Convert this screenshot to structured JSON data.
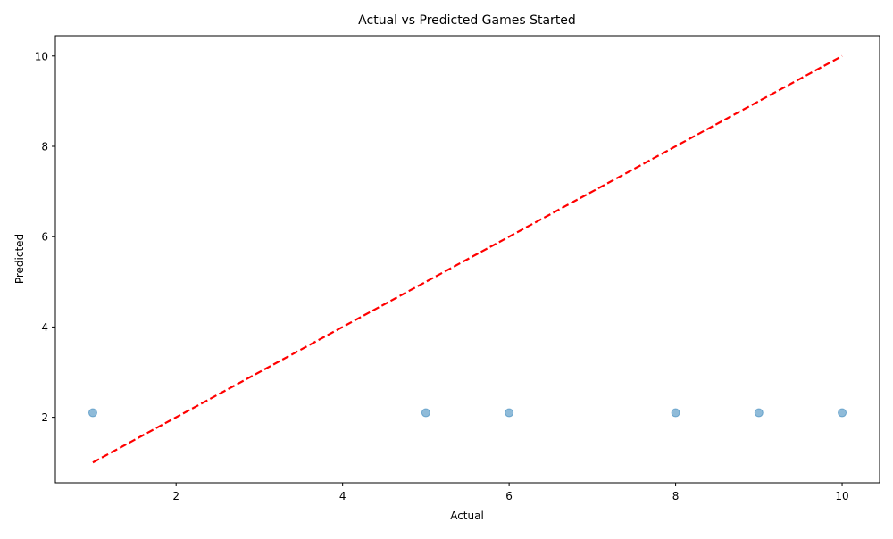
{
  "chart_data": {
    "type": "scatter",
    "title": "Actual vs Predicted Games Started",
    "xlabel": "Actual",
    "ylabel": "Predicted",
    "xlim": [
      0.55,
      10.45
    ],
    "ylim": [
      0.55,
      10.45
    ],
    "xticks": [
      2,
      4,
      6,
      8,
      10
    ],
    "yticks": [
      2,
      4,
      6,
      8,
      10
    ],
    "grid": false,
    "points": [
      {
        "x": 1,
        "y": 2.1
      },
      {
        "x": 5,
        "y": 2.1
      },
      {
        "x": 6,
        "y": 2.1
      },
      {
        "x": 8,
        "y": 2.1
      },
      {
        "x": 9,
        "y": 2.1
      },
      {
        "x": 10,
        "y": 2.1
      }
    ],
    "reference_line": {
      "x": [
        1,
        10
      ],
      "y": [
        1,
        10
      ],
      "style": "dashed"
    },
    "colors": {
      "points": "#1f77b4",
      "reference_line": "#ff0000",
      "axes": "#000000"
    }
  }
}
